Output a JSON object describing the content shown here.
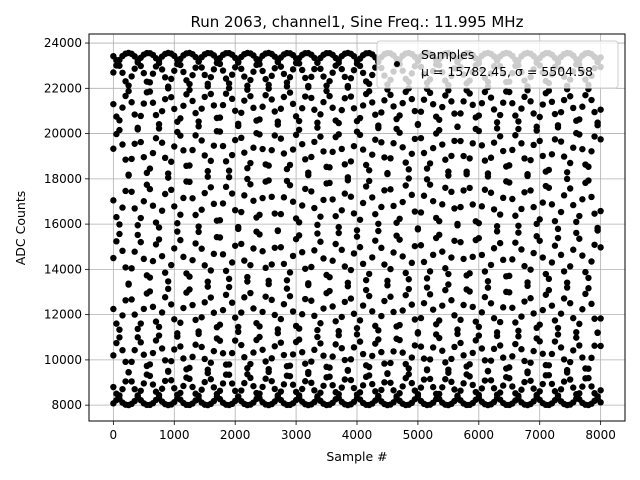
{
  "chart_data": {
    "type": "scatter",
    "title": "Run 2063, channel1, Sine Freq.: 11.995 MHz",
    "xlabel": "Sample #",
    "ylabel": "ADC Counts",
    "xlim": [
      -400,
      8400
    ],
    "ylim": [
      7300,
      24400
    ],
    "xticks": [
      0,
      1000,
      2000,
      3000,
      4000,
      5000,
      6000,
      7000,
      8000
    ],
    "yticks": [
      8000,
      10000,
      12000,
      14000,
      16000,
      18000,
      20000,
      22000,
      24000
    ],
    "grid": true,
    "legend_position": "top-right",
    "series": [
      {
        "name": "Samples",
        "stat_text": "μ = 15782.45, σ = 5504.58",
        "color": "#000000",
        "marker": "dot",
        "sample_range": [
          0,
          8000
        ],
        "waveform": {
          "mean": 15782.45,
          "amplitude": 7780,
          "period_samples": 3277,
          "start_values": [
            23420,
            22700,
            21300,
            19330,
            17050,
            14500,
            12250,
            10200,
            8800,
            8080
          ]
        }
      }
    ]
  }
}
